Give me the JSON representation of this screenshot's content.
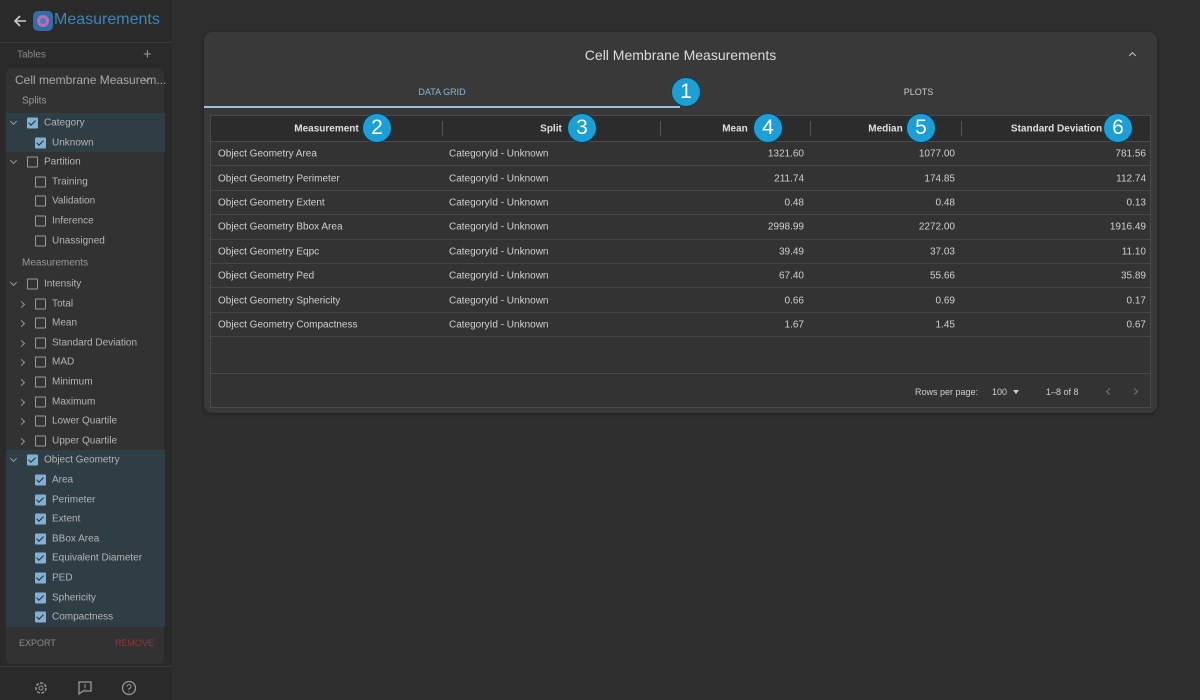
{
  "sidebar": {
    "title": "Measurements",
    "tables_label": "Tables",
    "table_name": "Cell membrane Measurem...",
    "splits_label": "Splits",
    "splits": [
      {
        "label": "Category",
        "checked": true,
        "children": [
          {
            "label": "Unknown",
            "checked": true
          }
        ]
      },
      {
        "label": "Partition",
        "checked": false,
        "children": [
          {
            "label": "Training",
            "checked": false
          },
          {
            "label": "Validation",
            "checked": false
          },
          {
            "label": "Inference",
            "checked": false
          },
          {
            "label": "Unassigned",
            "checked": false
          }
        ]
      }
    ],
    "measurements_label": "Measurements",
    "measurements": [
      {
        "label": "Intensity",
        "checked": false,
        "children": [
          {
            "label": "Total",
            "checked": false,
            "collapsible": true
          },
          {
            "label": "Mean",
            "checked": false,
            "collapsible": true
          },
          {
            "label": "Standard Deviation",
            "checked": false,
            "collapsible": true
          },
          {
            "label": "MAD",
            "checked": false,
            "collapsible": true
          },
          {
            "label": "Minimum",
            "checked": false,
            "collapsible": true
          },
          {
            "label": "Maximum",
            "checked": false,
            "collapsible": true
          },
          {
            "label": "Lower Quartile",
            "checked": false,
            "collapsible": true
          },
          {
            "label": "Upper Quartile",
            "checked": false,
            "collapsible": true
          }
        ]
      },
      {
        "label": "Object Geometry",
        "checked": true,
        "children": [
          {
            "label": "Area",
            "checked": true
          },
          {
            "label": "Perimeter",
            "checked": true
          },
          {
            "label": "Extent",
            "checked": true
          },
          {
            "label": "BBox Area",
            "checked": true
          },
          {
            "label": "Equivalent Diameter",
            "checked": true
          },
          {
            "label": "PED",
            "checked": true
          },
          {
            "label": "Sphericity",
            "checked": true
          },
          {
            "label": "Compactness",
            "checked": true
          }
        ]
      }
    ],
    "export": "EXPORT",
    "remove": "REMOVE"
  },
  "panel": {
    "title": "Cell Membrane Measurements",
    "tabs": [
      "DATA GRID",
      "PLOTS"
    ],
    "table": {
      "columns": [
        "Measurement",
        "Split",
        "Mean",
        "Median",
        "Standard Deviation"
      ],
      "rows": [
        [
          "Object Geometry Area",
          "CategoryId - Unknown",
          "1321.60",
          "1077.00",
          "781.56"
        ],
        [
          "Object Geometry Perimeter",
          "CategoryId - Unknown",
          "211.74",
          "174.85",
          "112.74"
        ],
        [
          "Object Geometry Extent",
          "CategoryId - Unknown",
          "0.48",
          "0.48",
          "0.13"
        ],
        [
          "Object Geometry Bbox Area",
          "CategoryId - Unknown",
          "2998.99",
          "2272.00",
          "1916.49"
        ],
        [
          "Object Geometry Eqpc",
          "CategoryId - Unknown",
          "39.49",
          "37.03",
          "11.10"
        ],
        [
          "Object Geometry Ped",
          "CategoryId - Unknown",
          "67.40",
          "55.66",
          "35.89"
        ],
        [
          "Object Geometry Sphericity",
          "CategoryId - Unknown",
          "0.66",
          "0.69",
          "0.17"
        ],
        [
          "Object Geometry Compactness",
          "CategoryId - Unknown",
          "1.67",
          "1.45",
          "0.67"
        ]
      ]
    },
    "footer": {
      "rows_per_page_label": "Rows per page:",
      "rows_per_page": 100,
      "range": "1–8 of 8"
    }
  },
  "callouts": [
    1,
    2,
    3,
    4,
    5,
    6
  ]
}
